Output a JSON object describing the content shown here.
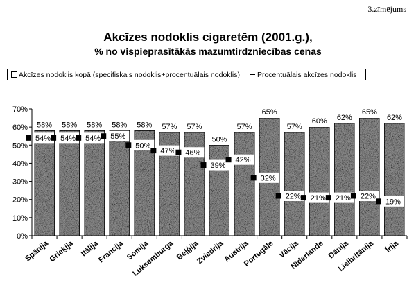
{
  "figure_number": "3.zīmējums",
  "colors": {
    "bar_fill": "#8a8a8a",
    "bar_edge": "#000000",
    "marker": "#000000"
  },
  "chart_data": {
    "type": "bar",
    "title": "Akcīzes nodoklis cigaretēm (2001.g.),",
    "subtitle": "% no vispieprasītākās mazumtirdzniecības cenas",
    "legend": {
      "bar_label": "Akcīzes nodoklis kopā (specifiskais nodoklis+procentuālais nodoklis)",
      "line_label": "Procentuālais akcīzes nodoklis",
      "placement": "top"
    },
    "categories": [
      "Spānija",
      "Grieķija",
      "Itālija",
      "Francija",
      "Somija",
      "Luksemburga",
      "Beļģija",
      "Zviedrija",
      "Austrija",
      "Portugāle",
      "Vācija",
      "Nīderlande",
      "Dānija",
      "Lielbritānija",
      "Īrija"
    ],
    "series": [
      {
        "name": "Akcīzes nodoklis kopā (specifiskais nodoklis+procentuālais nodoklis)",
        "kind": "bar",
        "values": [
          58,
          58,
          58,
          58,
          58,
          57,
          57,
          50,
          57,
          65,
          57,
          60,
          62,
          65,
          62
        ]
      },
      {
        "name": "Procentuālais akcīzes nodoklis",
        "kind": "marker",
        "values": [
          54,
          54,
          54,
          55,
          50,
          47,
          46,
          39,
          42,
          32,
          22,
          21,
          21,
          22,
          19
        ]
      }
    ],
    "bar_labels": [
      "58%",
      "58%",
      "58%",
      "58%",
      "58%",
      "57%",
      "57%",
      "50%",
      "57%",
      "65%",
      "57%",
      "60%",
      "62%",
      "65%",
      "62%"
    ],
    "marker_labels": [
      "54%",
      "54%",
      "54%",
      "55%",
      "50%",
      "47%",
      "46%",
      "39%",
      "42%",
      "32%",
      "22%",
      "21%",
      "21%",
      "22%",
      "19%"
    ],
    "y_ticks": [
      "0%",
      "10%",
      "20%",
      "30%",
      "40%",
      "50%",
      "60%",
      "70%"
    ],
    "ylim": [
      0,
      70
    ],
    "xlabel": "",
    "ylabel": "",
    "grid": false
  }
}
